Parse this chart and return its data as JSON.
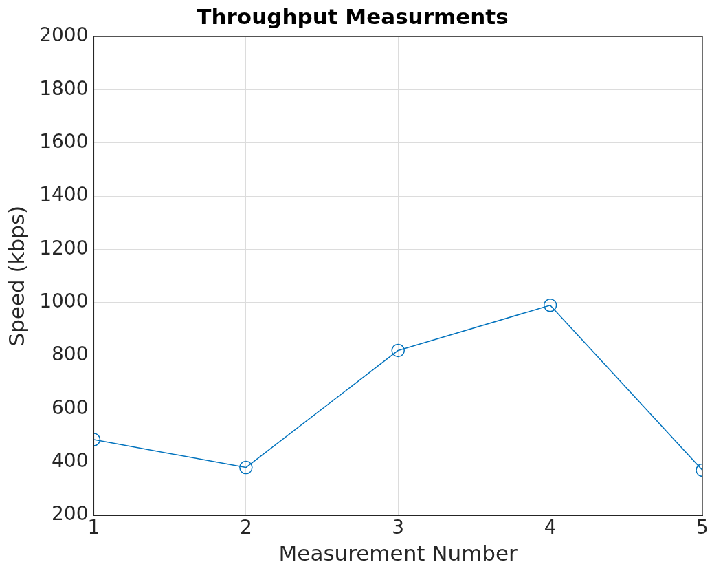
{
  "chart_data": {
    "type": "line",
    "title": "Throughput Measurments",
    "xlabel": "Measurement Number",
    "ylabel": "Speed (kbps)",
    "x": [
      1,
      2,
      3,
      4,
      5
    ],
    "series": [
      {
        "color": "#0072bd",
        "values": [
          485,
          380,
          820,
          990,
          370
        ]
      }
    ],
    "xlim": [
      1,
      5
    ],
    "xticks": [
      1,
      2,
      3,
      4,
      5
    ],
    "ylim": [
      200,
      2000
    ],
    "yticks": [
      200,
      400,
      600,
      800,
      1000,
      1200,
      1400,
      1600,
      1800,
      2000
    ],
    "grid": true,
    "marker": "circle",
    "line_style": "solid",
    "legend": false
  }
}
